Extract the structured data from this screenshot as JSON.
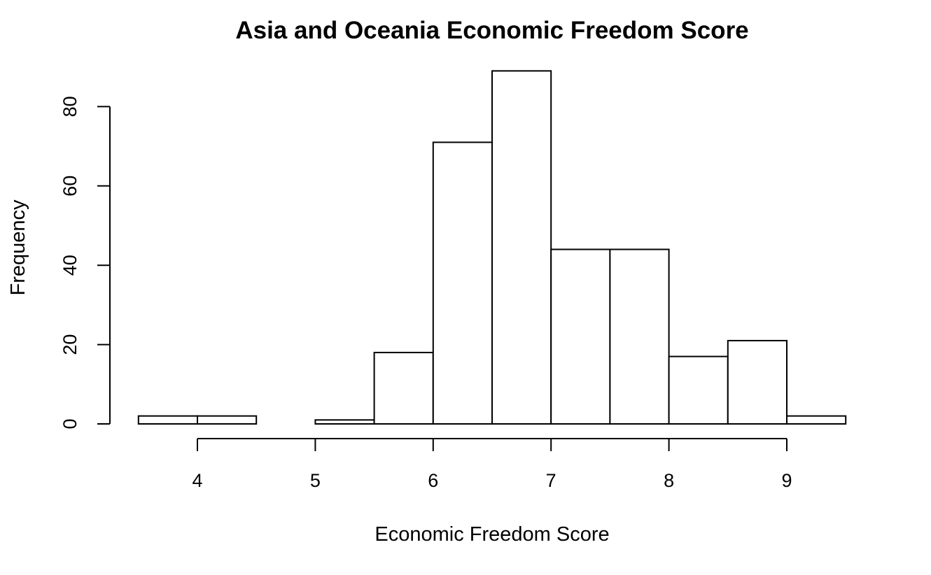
{
  "chart_data": {
    "type": "bar",
    "subtype": "histogram",
    "title": "Asia and Oceania Economic Freedom Score",
    "xlabel": "Economic Freedom Score",
    "ylabel": "Frequency",
    "bins": [
      {
        "start": 3.5,
        "end": 4.0,
        "count": 2
      },
      {
        "start": 4.0,
        "end": 4.5,
        "count": 2
      },
      {
        "start": 4.5,
        "end": 5.0,
        "count": 0
      },
      {
        "start": 5.0,
        "end": 5.5,
        "count": 1
      },
      {
        "start": 5.5,
        "end": 6.0,
        "count": 18
      },
      {
        "start": 6.0,
        "end": 6.5,
        "count": 71
      },
      {
        "start": 6.5,
        "end": 7.0,
        "count": 89
      },
      {
        "start": 7.0,
        "end": 7.5,
        "count": 44
      },
      {
        "start": 7.5,
        "end": 8.0,
        "count": 44
      },
      {
        "start": 8.0,
        "end": 8.5,
        "count": 17
      },
      {
        "start": 8.5,
        "end": 9.0,
        "count": 21
      },
      {
        "start": 9.0,
        "end": 9.5,
        "count": 2
      }
    ],
    "xticks": [
      4,
      5,
      6,
      7,
      8,
      9
    ],
    "yticks": [
      0,
      20,
      40,
      60,
      80
    ],
    "xlim": [
      3.5,
      9.5
    ],
    "ylim": [
      0,
      89
    ],
    "grid": false,
    "colors": {
      "bar_fill": "#ffffff",
      "bar_stroke": "#000000"
    }
  }
}
